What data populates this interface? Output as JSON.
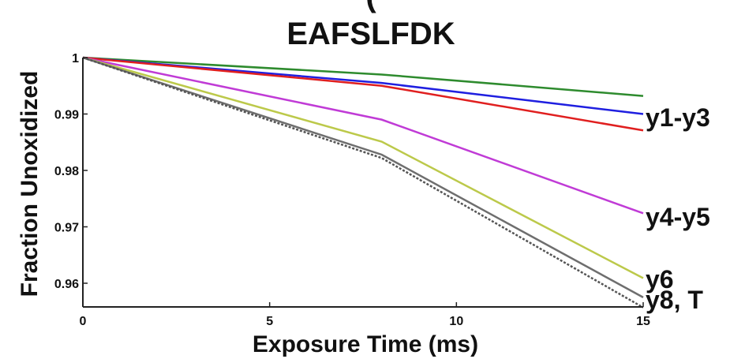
{
  "chart_data": {
    "type": "line",
    "title": "EAFSLFDK",
    "xlabel": "Exposure Time (ms)",
    "ylabel": "Fraction Unoxidized",
    "xlim": [
      0,
      15
    ],
    "ylim": [
      0.9558,
      1.0
    ],
    "xticks": [
      "0",
      "5",
      "10",
      "15"
    ],
    "yticks": [
      "0.96",
      "0.97",
      "0.98",
      "0.99",
      "1"
    ],
    "grid": false,
    "series": [
      {
        "color": "#2e8b2e",
        "dash": false,
        "x": [
          0,
          8,
          15
        ],
        "y": [
          1.0,
          0.997,
          0.9932
        ]
      },
      {
        "color": "#1f1fe0",
        "dash": false,
        "x": [
          0,
          8,
          15
        ],
        "y": [
          1.0,
          0.9955,
          0.99
        ]
      },
      {
        "color": "#e01f1f",
        "dash": false,
        "x": [
          0,
          8,
          15
        ],
        "y": [
          1.0,
          0.995,
          0.9871
        ]
      },
      {
        "color": "#c03bd6",
        "dash": false,
        "x": [
          0,
          8,
          15
        ],
        "y": [
          1.0,
          0.989,
          0.9724
        ]
      },
      {
        "color": "#bcc94a",
        "dash": false,
        "x": [
          0,
          8,
          15
        ],
        "y": [
          1.0,
          0.9851,
          0.9609
        ]
      },
      {
        "color": "#6e6e6e",
        "dash": false,
        "x": [
          0,
          8,
          15
        ],
        "y": [
          1.0,
          0.9828,
          0.9575
        ]
      },
      {
        "color": "#555555",
        "dash": true,
        "x": [
          0,
          8,
          15
        ],
        "y": [
          1.0,
          0.9822,
          0.9557
        ]
      }
    ],
    "annotations": [
      "y1-y3",
      "y4-y5",
      "y6",
      "y8, T"
    ]
  }
}
